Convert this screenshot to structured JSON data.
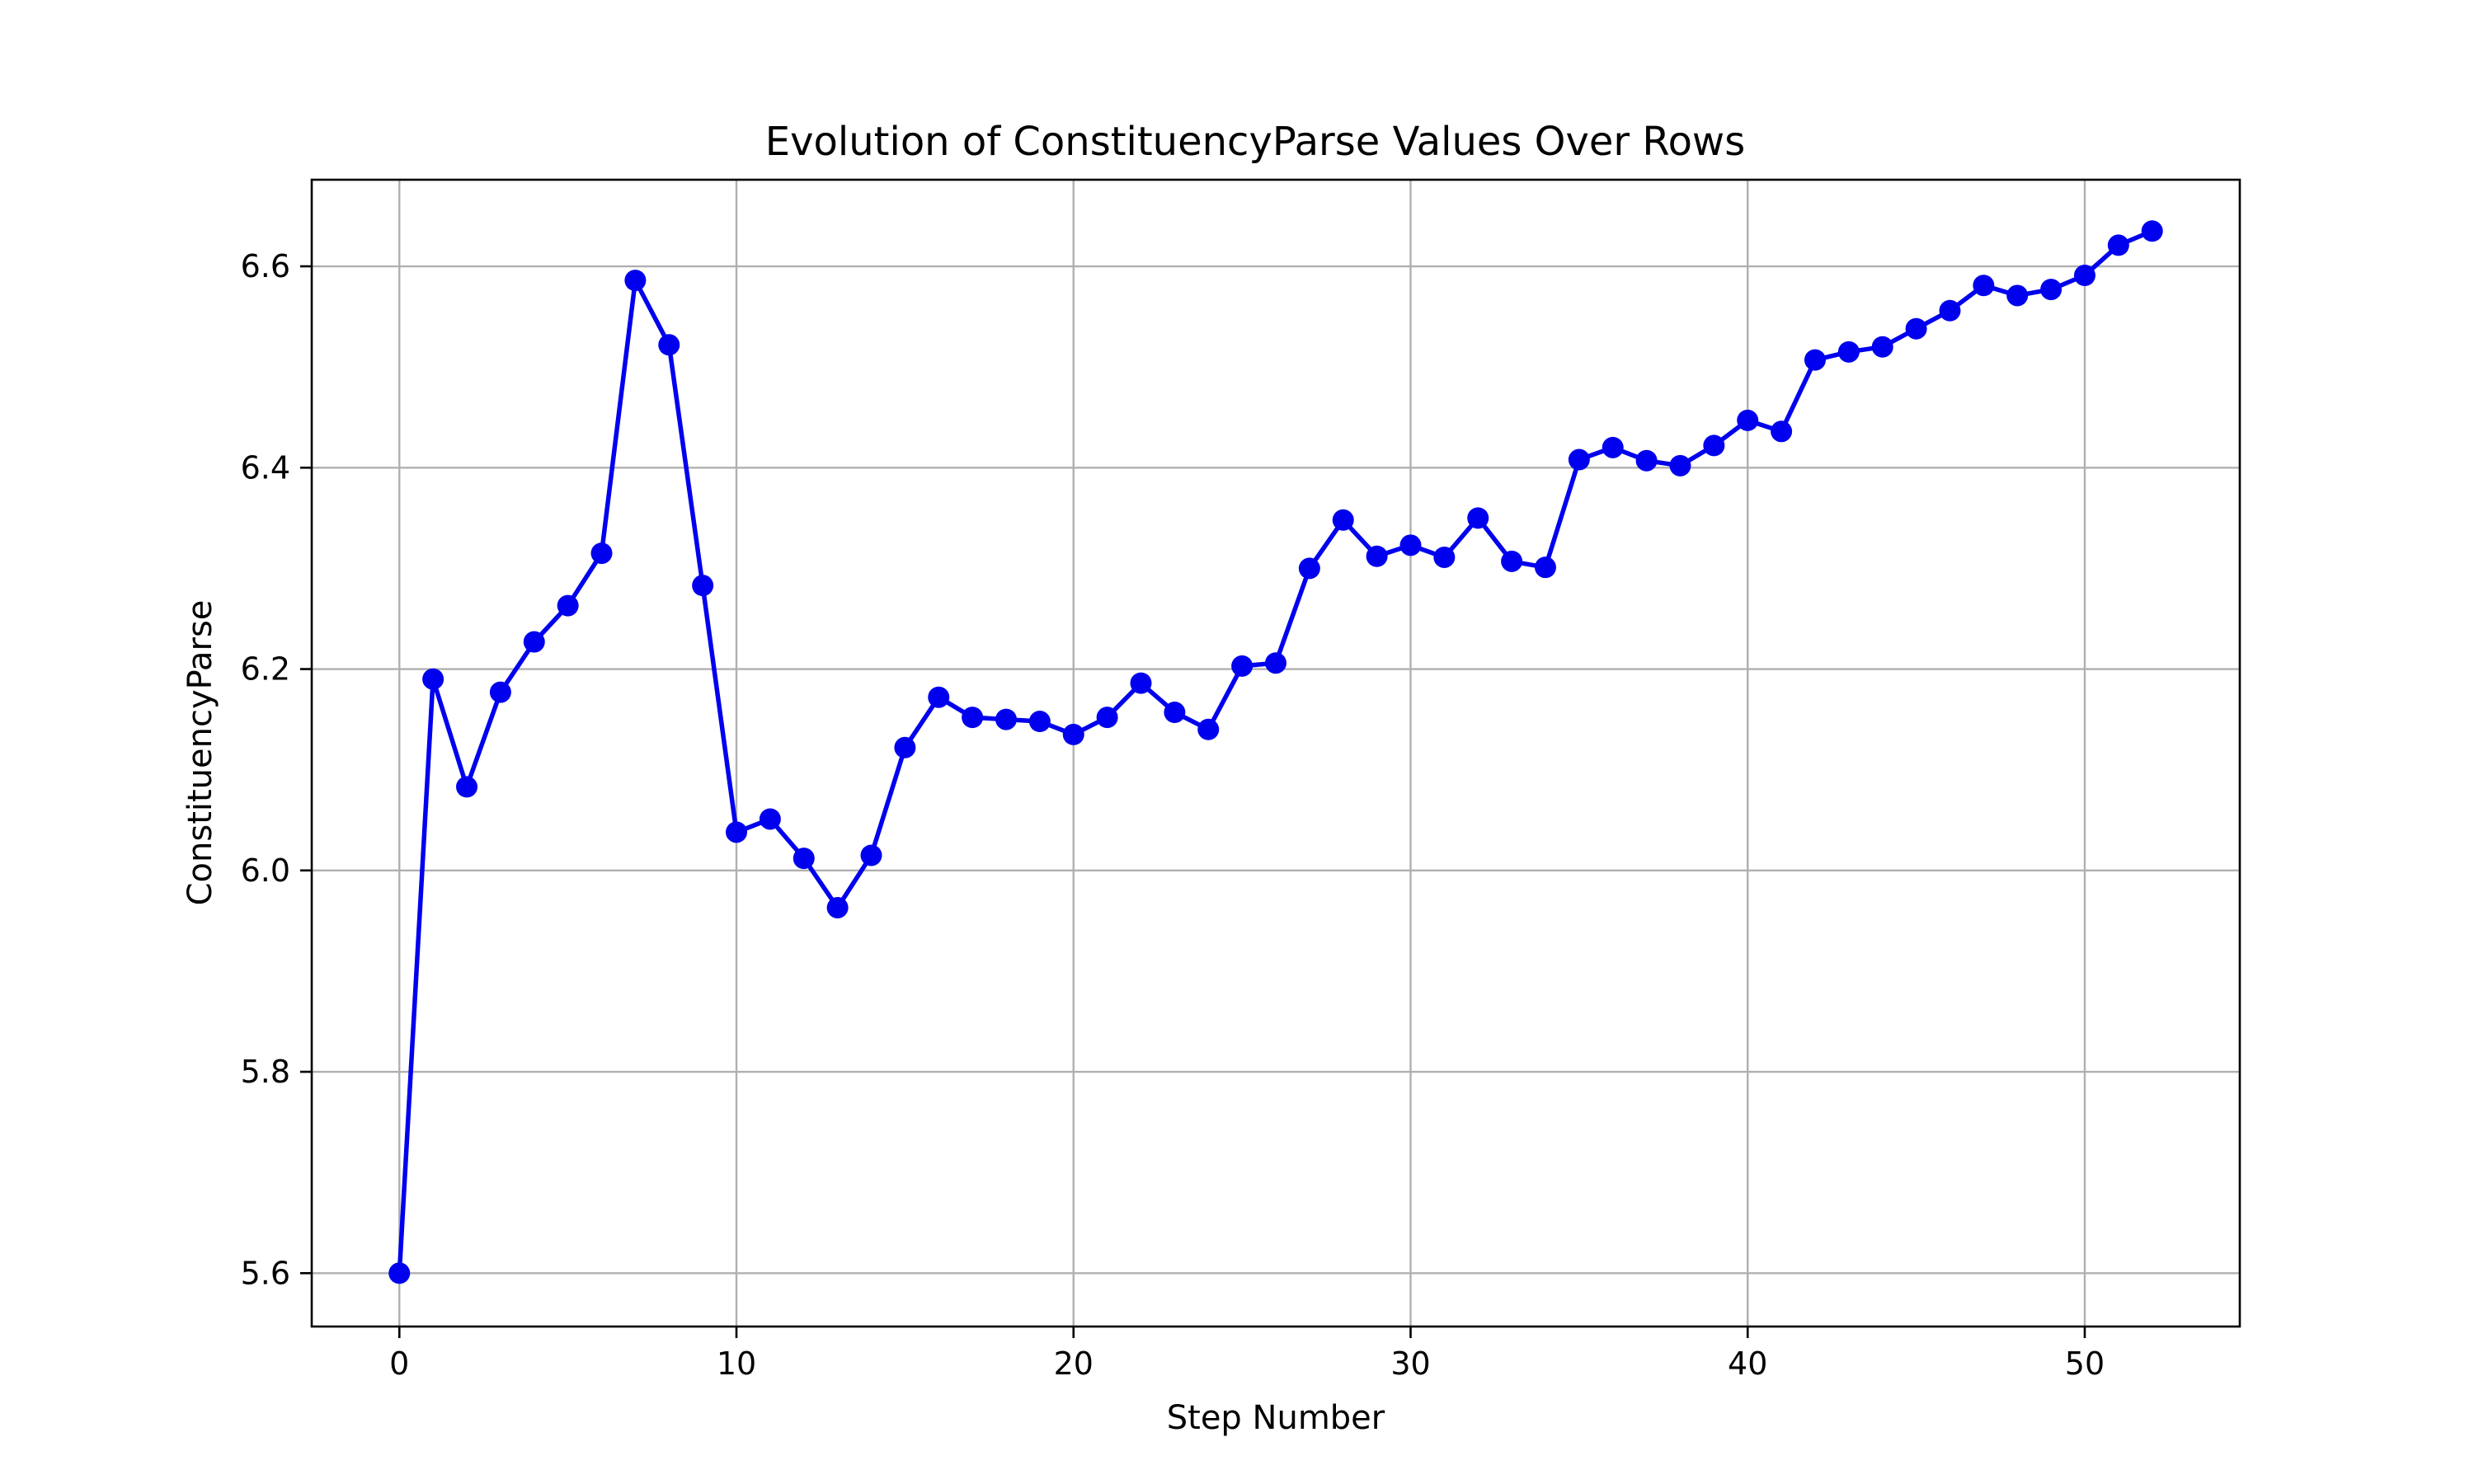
{
  "chart_data": {
    "type": "line",
    "title": "Evolution of ConstituencyParse Values Over Rows",
    "xlabel": "Step Number",
    "ylabel": "ConstituencyParse",
    "xlim": [
      -2.6,
      54.6
    ],
    "ylim": [
      5.547,
      6.686
    ],
    "xticks": [
      0,
      10,
      20,
      30,
      40,
      50
    ],
    "xtick_labels": [
      "0",
      "10",
      "20",
      "30",
      "40",
      "50"
    ],
    "yticks": [
      5.6,
      5.8,
      6.0,
      6.2,
      6.4,
      6.6
    ],
    "ytick_labels": [
      "5.6",
      "5.8",
      "6.0",
      "6.2",
      "6.4",
      "6.6"
    ],
    "grid": true,
    "color": "#0000ee",
    "marker": "circle",
    "series": [
      {
        "name": "",
        "x": [
          0,
          1,
          2,
          3,
          4,
          5,
          6,
          7,
          8,
          9,
          10,
          11,
          12,
          13,
          14,
          15,
          16,
          17,
          18,
          19,
          20,
          21,
          22,
          23,
          24,
          25,
          26,
          27,
          28,
          29,
          30,
          31,
          32,
          33,
          34,
          35,
          36,
          37,
          38,
          39,
          40,
          41,
          42,
          43,
          44,
          45,
          46,
          47,
          48,
          49,
          50,
          51,
          52
        ],
        "y": [
          5.6,
          6.19,
          6.083,
          6.177,
          6.227,
          6.263,
          6.315,
          6.586,
          6.522,
          6.283,
          6.038,
          6.051,
          6.012,
          5.963,
          6.015,
          6.122,
          6.172,
          6.152,
          6.15,
          6.148,
          6.135,
          6.152,
          6.186,
          6.157,
          6.14,
          6.203,
          6.206,
          6.3,
          6.348,
          6.312,
          6.323,
          6.311,
          6.35,
          6.307,
          6.301,
          6.408,
          6.42,
          6.407,
          6.402,
          6.422,
          6.447,
          6.436,
          6.507,
          6.515,
          6.52,
          6.538,
          6.556,
          6.581,
          6.571,
          6.577,
          6.591,
          6.621,
          6.635
        ]
      }
    ]
  }
}
